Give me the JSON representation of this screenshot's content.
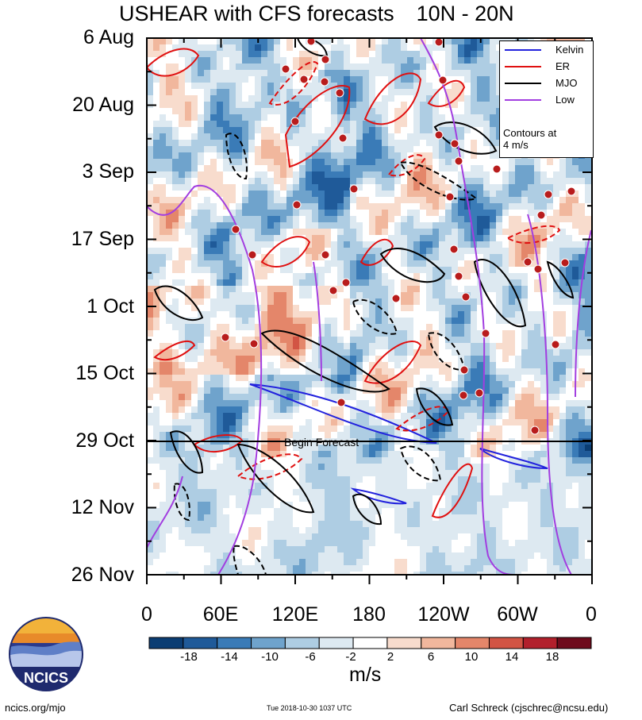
{
  "header": {
    "title": "USHEAR with CFS forecasts",
    "lat_band": "10N - 20N"
  },
  "chart_data": {
    "type": "heatmap",
    "title": "USHEAR with CFS forecasts",
    "subtitle": "10N - 20N",
    "y_tick_labels": [
      "6 Aug",
      "20 Aug",
      "3 Sep",
      "17 Sep",
      "1 Oct",
      "15 Oct",
      "29 Oct",
      "12 Nov",
      "26 Nov"
    ],
    "x_tick_labels": [
      "0",
      "60E",
      "120E",
      "180",
      "120W",
      "60W",
      "0"
    ],
    "x_range_deg": [
      0,
      360
    ],
    "forecast_line_label": "Begin Forecast",
    "legend": {
      "entries": [
        {
          "name": "Kelvin",
          "color": "#2222dd"
        },
        {
          "name": "ER",
          "color": "#e01010"
        },
        {
          "name": "MJO",
          "color": "#000000"
        },
        {
          "name": "Low",
          "color": "#a23ee0"
        }
      ],
      "note_line1": "Contours at",
      "note_line2": "4 m/s",
      "placement": "top-right"
    },
    "colorbar": {
      "units": "m/s",
      "tick_labels": [
        "-18",
        "-14",
        "-10",
        "-6",
        "-2",
        "2",
        "6",
        "10",
        "14",
        "18"
      ],
      "colors": [
        "#0b3d73",
        "#1f5a99",
        "#3a7bb7",
        "#6fa3cc",
        "#aecde3",
        "#dde9f1",
        "#ffffff",
        "#f8dccd",
        "#f1b79d",
        "#e4866a",
        "#d25444",
        "#b2202c",
        "#6e0b1c"
      ]
    }
  },
  "logo": {
    "text": "NCICS"
  },
  "footer": {
    "site": "ncics.org/mjo",
    "timestamp": "Tue 2018-10-30 1037 UTC",
    "author": "Carl Schreck (cjschrec@ncsu.edu)"
  }
}
